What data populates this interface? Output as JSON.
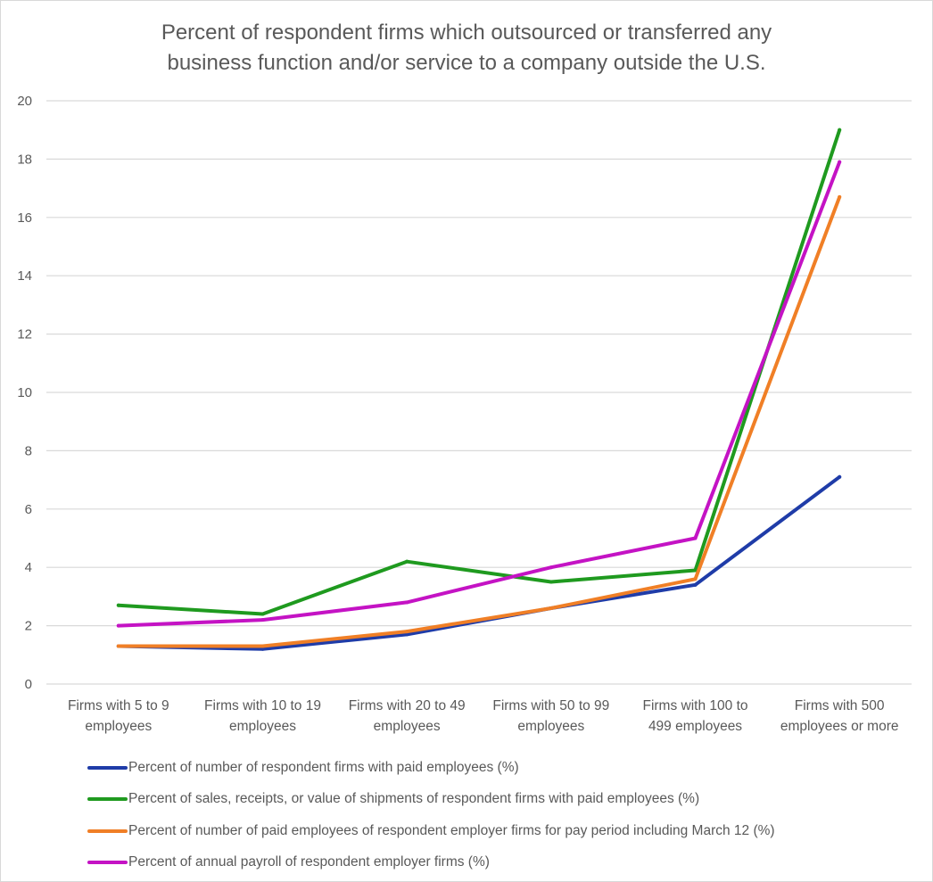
{
  "chart_data": {
    "type": "line",
    "title_lines": [
      "Percent of respondent firms which outsourced or transferred any",
      "business function and/or service to a company outside the U.S."
    ],
    "categories": [
      [
        "Firms with 5 to 9",
        "employees"
      ],
      [
        "Firms with 10 to 19",
        "employees"
      ],
      [
        "Firms with 20 to 49",
        "employees"
      ],
      [
        "Firms with 50 to 99",
        "employees"
      ],
      [
        "Firms with 100 to",
        "499 employees"
      ],
      [
        "Firms with 500",
        "employees or more"
      ]
    ],
    "ylim": [
      0,
      20
    ],
    "yticks": [
      "0",
      "2",
      "4",
      "6",
      "8",
      "10",
      "12",
      "14",
      "16",
      "18",
      "20"
    ],
    "grid": true,
    "legend_position": "bottom",
    "series": [
      {
        "name": "Percent of number of respondent firms with paid employees (%)",
        "color": "#1f3ca8",
        "values": [
          1.3,
          1.2,
          1.7,
          2.6,
          3.4,
          7.1
        ]
      },
      {
        "name": "Percent of sales, receipts, or value of shipments of respondent firms with paid employees (%)",
        "color": "#1f9a1f",
        "values": [
          2.7,
          2.4,
          4.2,
          3.5,
          3.9,
          19.0
        ]
      },
      {
        "name": "Percent of number of paid employees of respondent employer firms for pay period including March 12 (%)",
        "color": "#f07f26",
        "values": [
          1.3,
          1.3,
          1.8,
          2.6,
          3.6,
          16.7
        ]
      },
      {
        "name": "Percent of annual payroll of respondent employer firms (%)",
        "color": "#c413c4",
        "values": [
          2.0,
          2.2,
          2.8,
          4.0,
          5.0,
          17.9
        ]
      }
    ]
  }
}
